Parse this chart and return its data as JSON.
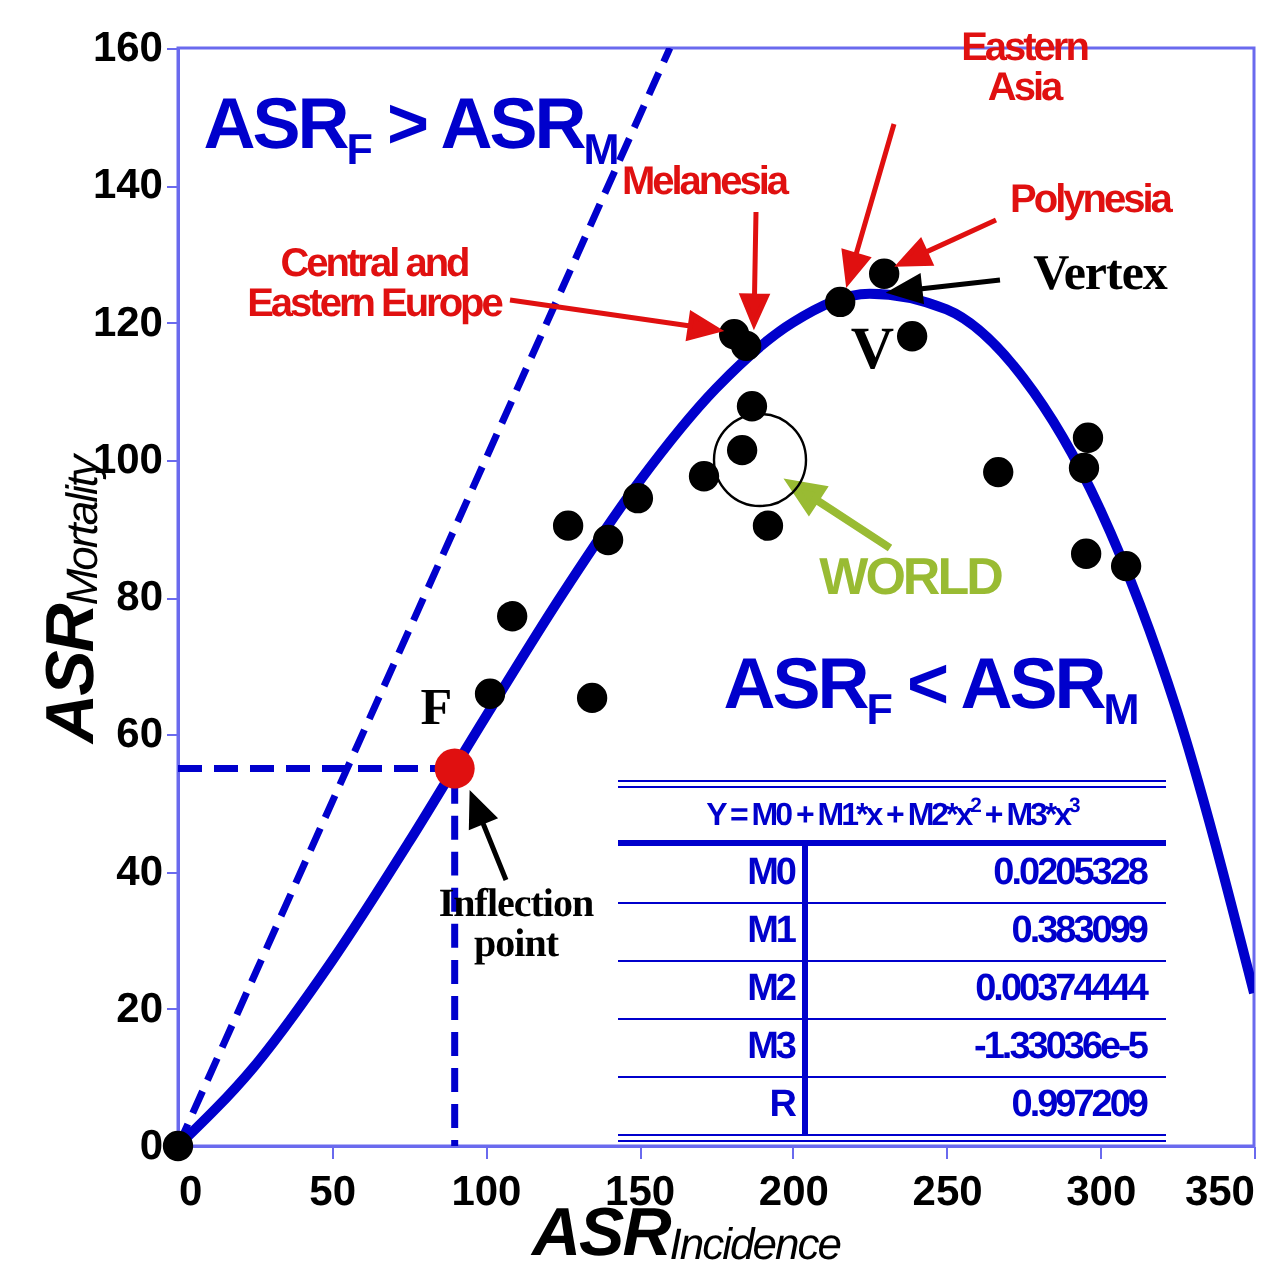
{
  "chart_data": {
    "type": "scatter",
    "xlabel": "ASR$_{Incidence}$",
    "ylabel": "ASR$_{Mortality}$",
    "xlim": [
      0,
      350
    ],
    "ylim": [
      0,
      160
    ],
    "xticks": [
      0,
      50,
      100,
      150,
      200,
      250,
      300,
      350
    ],
    "yticks": [
      0,
      20,
      40,
      60,
      80,
      100,
      120,
      140,
      160
    ],
    "grid": false,
    "marker": "circle",
    "series": [
      {
        "color": "#000000",
        "x": [
          0,
          101.5,
          108.7,
          126.9,
          134.7,
          139.9,
          149.6,
          171.1,
          180.9,
          184.8,
          183.5,
          186.7,
          191.9,
          215.4,
          229.7,
          238.8,
          266.8,
          296,
          294.7,
          295.4,
          308.4
        ],
        "values": [
          0,
          65.9,
          77.2,
          90.4,
          65.3,
          88.3,
          94.4,
          97.6,
          118.3,
          116.6,
          101.4,
          107.8,
          90.4,
          123,
          127.1,
          118,
          98.2,
          103.2,
          98.8,
          86.3,
          84.5
        ]
      },
      {
        "color": "#e01010",
        "x": [
          90
        ],
        "values": [
          55
        ]
      },
      {
        "type": "line",
        "color": "#0000cc",
        "line_style": "solid",
        "marker": "none",
        "x": [
          0,
          25,
          50,
          75,
          100,
          125,
          150,
          175,
          200,
          225,
          250,
          275,
          300,
          325,
          350
        ],
        "values": [
          0,
          11.7,
          26.9,
          44.2,
          62.5,
          80.4,
          96.8,
          110.4,
          120,
          124.2,
          121.9,
          111.9,
          92.7,
          63.3,
          22.3
        ]
      },
      {
        "type": "line",
        "color": "#0000cc",
        "line_style": "dashed",
        "marker": "none",
        "x": [
          0,
          160
        ],
        "values": [
          0,
          160
        ]
      },
      {
        "type": "line",
        "color": "#0000cc",
        "line_style": "dashed",
        "marker": "none",
        "x": [
          0,
          90,
          90
        ],
        "values": [
          55,
          55,
          0
        ]
      }
    ],
    "annotations": [
      "ASR$_{F}$ > ASR$_{M}$",
      "ASR$_{F}$ < ASR$_{M}$",
      "Central and Eastern Europe",
      "Melanesia",
      "Eastern Asia",
      "Polynesia",
      "Vertex",
      "V",
      "WORLD",
      "F",
      "Inflection point",
      "Y = M0 + M1*x + M2*x$^{2}$ + M3*x$^{3}$",
      "M0",
      "0.0205328",
      "M1",
      "0.383099",
      "M2",
      "0.00374444",
      "M3",
      "-1.33036e-5",
      "R",
      "0.997209"
    ]
  }
}
